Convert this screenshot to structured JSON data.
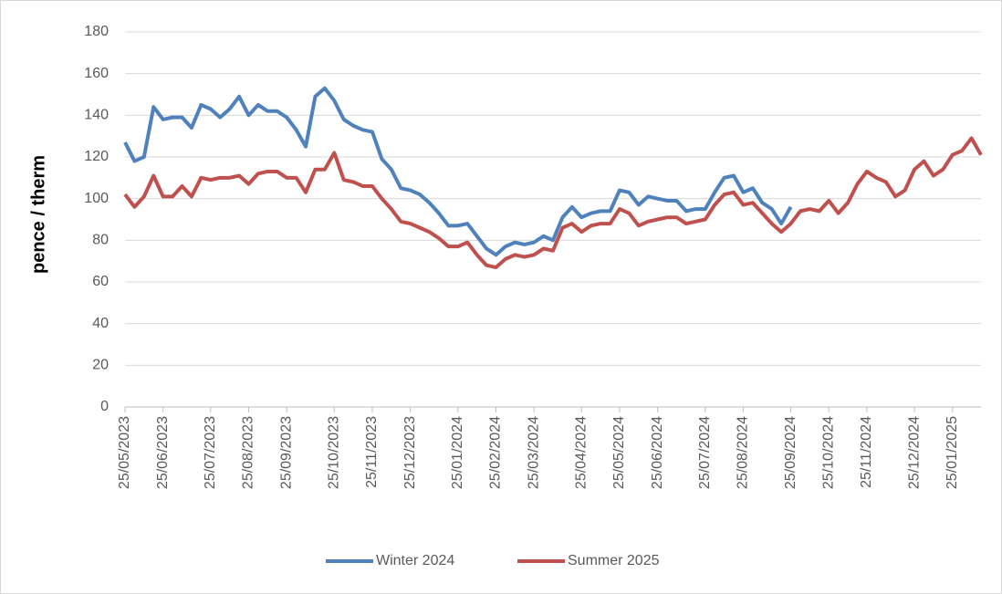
{
  "chart_data": {
    "type": "line",
    "y_label": "pence / therm",
    "categories": [
      "25/05/2023",
      null,
      null,
      null,
      "25/06/2023",
      null,
      null,
      null,
      null,
      "25/07/2023",
      null,
      null,
      null,
      "25/08/2023",
      null,
      null,
      null,
      "25/09/2023",
      null,
      null,
      null,
      null,
      "25/10/2023",
      null,
      null,
      null,
      "25/11/2023",
      null,
      null,
      null,
      "25/12/2023",
      null,
      null,
      null,
      null,
      "25/01/2024",
      null,
      null,
      null,
      "25/02/2024",
      null,
      null,
      null,
      "25/03/2024",
      null,
      null,
      null,
      null,
      "25/04/2024",
      null,
      null,
      null,
      "25/05/2024",
      null,
      null,
      null,
      "25/06/2024",
      null,
      null,
      null,
      null,
      "25/07/2024",
      null,
      null,
      null,
      "25/08/2024",
      null,
      null,
      null,
      null,
      "25/09/2024",
      null,
      null,
      null,
      "25/10/2024",
      null,
      null,
      null,
      "25/11/2024",
      null,
      null,
      null,
      null,
      "25/12/2024",
      null,
      null,
      null,
      "25/01/2025",
      null,
      null,
      null
    ],
    "series": [
      {
        "name": "Winter 2024",
        "color": "#4f81bd",
        "values": [
          127,
          118,
          120,
          144,
          138,
          139,
          139,
          134,
          145,
          143,
          139,
          143,
          149,
          140,
          145,
          142,
          142,
          139,
          133,
          125,
          149,
          153,
          147,
          138,
          135,
          133,
          132,
          119,
          114,
          105,
          104,
          102,
          98,
          93,
          87,
          87,
          88,
          82,
          76,
          73,
          77,
          79,
          78,
          79,
          82,
          80,
          91,
          96,
          91,
          93,
          94,
          94,
          104,
          103,
          97,
          101,
          100,
          99,
          99,
          94,
          95,
          95,
          103,
          110,
          111,
          103,
          105,
          98,
          95,
          88,
          96,
          null,
          null,
          null,
          null,
          null,
          null,
          null,
          null,
          null,
          null,
          null,
          null,
          null,
          null,
          null,
          null,
          null,
          null,
          null,
          null
        ]
      },
      {
        "name": "Summer 2025",
        "color": "#c0504d",
        "values": [
          102,
          96,
          101,
          111,
          101,
          101,
          106,
          101,
          110,
          109,
          110,
          110,
          111,
          107,
          112,
          113,
          113,
          110,
          110,
          103,
          114,
          114,
          122,
          109,
          108,
          106,
          106,
          100,
          95,
          89,
          88,
          86,
          84,
          81,
          77,
          77,
          79,
          73,
          68,
          67,
          71,
          73,
          72,
          73,
          76,
          75,
          86,
          88,
          84,
          87,
          88,
          88,
          95,
          93,
          87,
          89,
          90,
          91,
          91,
          88,
          89,
          90,
          97,
          102,
          103,
          97,
          98,
          93,
          88,
          84,
          88,
          94,
          95,
          94,
          99,
          93,
          98,
          107,
          113,
          110,
          108,
          101,
          104,
          114,
          118,
          111,
          114,
          121,
          123,
          129,
          121
        ]
      }
    ],
    "ylim": [
      0,
      180
    ],
    "yticks": [
      0,
      20,
      40,
      60,
      80,
      100,
      120,
      140,
      160,
      180
    ],
    "grid": true,
    "legend": "bottom"
  }
}
